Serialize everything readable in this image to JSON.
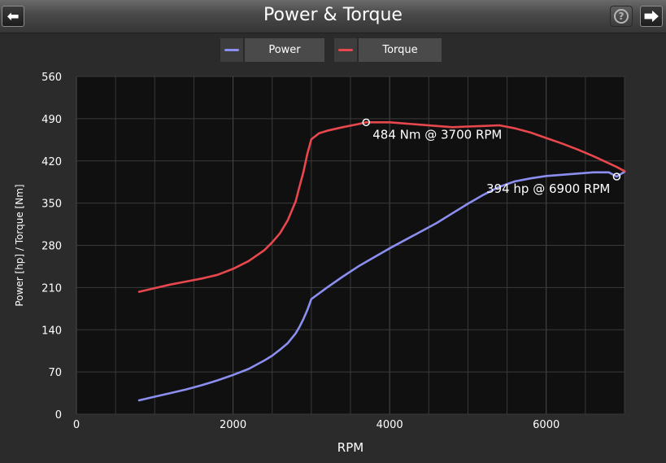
{
  "header": {
    "title": "Power & Torque",
    "back_icon": "arrow-left-icon",
    "forward_icon": "arrow-right-icon",
    "help_icon": "help-icon"
  },
  "colors": {
    "power": "#8a8ff0",
    "torque": "#e8474d",
    "plot_bg": "#101010",
    "grid": "#3a3a3a"
  },
  "chart_data": {
    "type": "line",
    "title": "Power & Torque",
    "xlabel": "RPM",
    "ylabel": "Power [hp] / Torque [Nm]",
    "xlim": [
      0,
      7000
    ],
    "ylim": [
      0,
      560
    ],
    "xticks": [
      0,
      2000,
      4000,
      6000
    ],
    "yticks": [
      0,
      70,
      140,
      210,
      280,
      350,
      420,
      490,
      560
    ],
    "grid": true,
    "legend": "top-center",
    "series": [
      {
        "name": "Power",
        "x": [
          800,
          1000,
          1200,
          1400,
          1600,
          1800,
          2000,
          2200,
          2400,
          2500,
          2600,
          2700,
          2800,
          2850,
          2900,
          2950,
          3000,
          3200,
          3400,
          3600,
          3800,
          4000,
          4200,
          4400,
          4600,
          4800,
          5000,
          5200,
          5400,
          5600,
          5800,
          6000,
          6200,
          6400,
          6600,
          6800,
          6900,
          7000
        ],
        "y": [
          23,
          29,
          35,
          41,
          48,
          56,
          65,
          75,
          89,
          97,
          107,
          118,
          134,
          145,
          158,
          173,
          191,
          210,
          228,
          245,
          260,
          275,
          289,
          303,
          317,
          333,
          349,
          364,
          377,
          386,
          391,
          395,
          397,
          399,
          401,
          401,
          394,
          402
        ]
      },
      {
        "name": "Torque",
        "x": [
          800,
          1000,
          1200,
          1400,
          1600,
          1800,
          2000,
          2200,
          2400,
          2500,
          2600,
          2700,
          2800,
          2850,
          2900,
          2950,
          3000,
          3100,
          3200,
          3400,
          3600,
          3700,
          3800,
          4000,
          4200,
          4400,
          4600,
          4800,
          5000,
          5200,
          5400,
          5600,
          5800,
          6000,
          6200,
          6400,
          6600,
          6800,
          6900,
          7000
        ],
        "y": [
          203,
          209,
          215,
          220,
          225,
          231,
          241,
          254,
          272,
          285,
          300,
          322,
          353,
          378,
          402,
          432,
          456,
          466,
          470,
          476,
          481,
          484,
          484,
          484,
          482,
          480,
          478,
          476,
          477,
          478,
          479,
          474,
          467,
          458,
          449,
          439,
          428,
          416,
          410,
          403
        ]
      }
    ],
    "annotations": [
      {
        "series": "Torque",
        "x": 3700,
        "y": 484,
        "text": "484 Nm @ 3700 RPM"
      },
      {
        "series": "Power",
        "x": 6900,
        "y": 394,
        "text": "394 hp @ 6900 RPM"
      }
    ]
  }
}
